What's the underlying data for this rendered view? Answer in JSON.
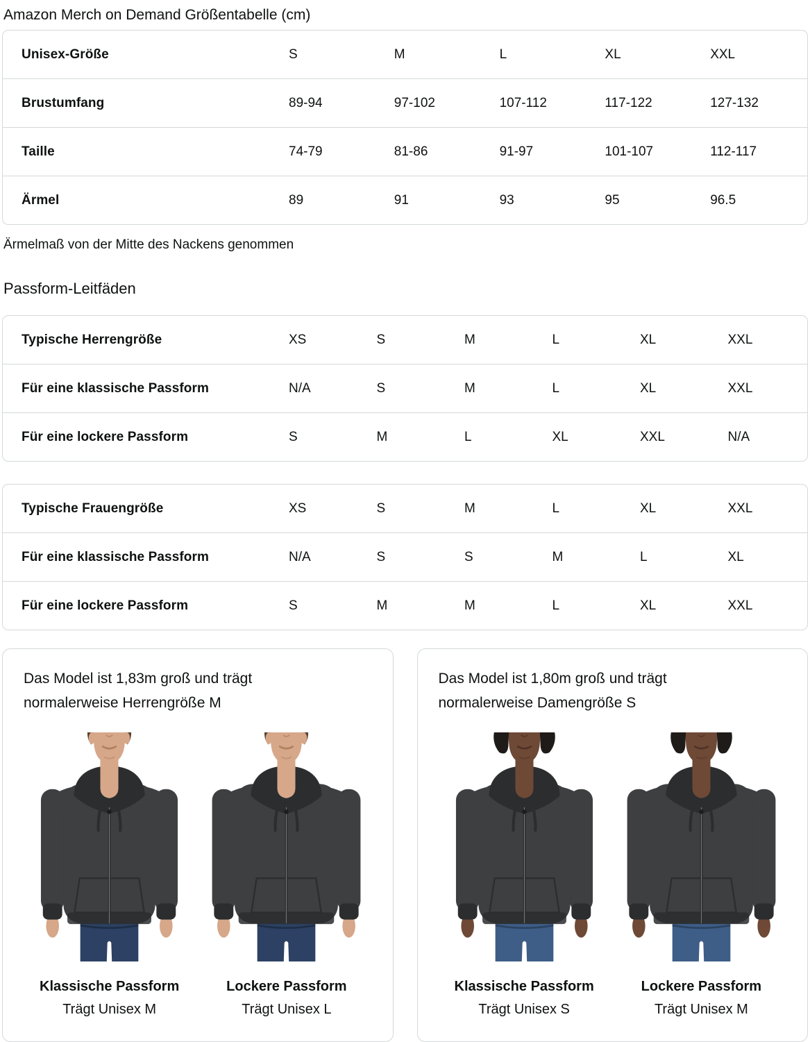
{
  "page": {
    "title": "Amazon Merch on Demand Größentabelle (cm)",
    "note": "Ärmelmaß von der Mitte des Nackens genommen",
    "section_heading": "Passform-Leitfäden"
  },
  "size_table": {
    "rows": [
      {
        "label": "Unisex-Größe",
        "values": [
          "S",
          "M",
          "L",
          "XL",
          "XXL"
        ]
      },
      {
        "label": "Brustumfang",
        "values": [
          "89-94",
          "97-102",
          "107-112",
          "117-122",
          "127-132"
        ]
      },
      {
        "label": "Taille",
        "values": [
          "74-79",
          "81-86",
          "91-97",
          "101-107",
          "112-117"
        ]
      },
      {
        "label": "Ärmel",
        "values": [
          "89",
          "91",
          "93",
          "95",
          "96.5"
        ]
      }
    ]
  },
  "fit_tables": [
    {
      "rows": [
        {
          "label": "Typische Herrengröße",
          "values": [
            "XS",
            "S",
            "M",
            "L",
            "XL",
            "XXL"
          ]
        },
        {
          "label": "Für eine klassische Passform",
          "values": [
            "N/A",
            "S",
            "M",
            "L",
            "XL",
            "XXL"
          ]
        },
        {
          "label": "Für eine lockere Passform",
          "values": [
            "S",
            "M",
            "L",
            "XL",
            "XXL",
            "N/A"
          ]
        }
      ]
    },
    {
      "rows": [
        {
          "label": "Typische Frauengröße",
          "values": [
            "XS",
            "S",
            "M",
            "L",
            "XL",
            "XXL"
          ]
        },
        {
          "label": "Für eine klassische Passform",
          "values": [
            "N/A",
            "S",
            "S",
            "M",
            "L",
            "XL"
          ]
        },
        {
          "label": "Für eine lockere Passform",
          "values": [
            "S",
            "M",
            "M",
            "L",
            "XL",
            "XXL"
          ]
        }
      ]
    }
  ],
  "cards": [
    {
      "description": "Das Model ist 1,83m groß und trägt normalerweise Herrengröße M",
      "figures": [
        {
          "model": "male",
          "fit": "classic",
          "title": "Klassische Passform",
          "subtitle": "Trägt Unisex M"
        },
        {
          "model": "male",
          "fit": "loose",
          "title": "Lockere Passform",
          "subtitle": "Trägt Unisex L"
        }
      ]
    },
    {
      "description": "Das Model ist 1,80m groß und trägt normalerweise Damengröße S",
      "figures": [
        {
          "model": "female",
          "fit": "classic",
          "title": "Klassische Passform",
          "subtitle": "Trägt Unisex S"
        },
        {
          "model": "female",
          "fit": "loose",
          "title": "Lockere Passform",
          "subtitle": "Trägt Unisex M"
        }
      ]
    }
  ],
  "colors": {
    "text": "#0f1111",
    "border": "#d5d9d9",
    "hoodie": "#3d3f41",
    "hoodie_dark": "#2b2d2f",
    "skin_male": "#d6a789",
    "skin_male_shade": "#b2815f",
    "skin_female": "#6e4936",
    "skin_female_shade": "#523225",
    "hair_male": "#58412e",
    "hair_female": "#1f1b19",
    "jeans_male": "#2c4163",
    "jeans_female": "#3e5d87"
  }
}
